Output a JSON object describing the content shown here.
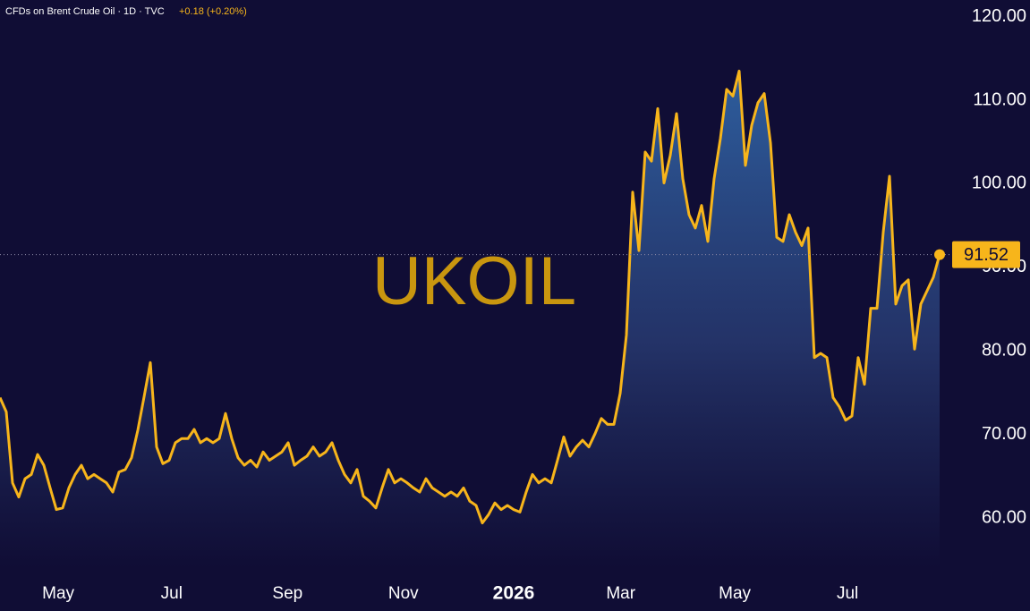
{
  "chart_data": {
    "type": "area-line",
    "title": "CFDs on Brent Crude Oil · 1D · TVC",
    "change": "+0.18 (+0.20%)",
    "watermark": "UKOIL",
    "color": "#f7b51b",
    "values": [
      74.4,
      72.7,
      64.2,
      62.5,
      64.7,
      65.2,
      67.6,
      66.3,
      63.6,
      61,
      61.2,
      63.6,
      65.2,
      66.3,
      64.7,
      65.2,
      64.7,
      64.2,
      63.1,
      65.5,
      65.8,
      67.2,
      70.5,
      74.5,
      78.6,
      68.5,
      66.5,
      66.9,
      69,
      69.5,
      69.5,
      70.6,
      69,
      69.5,
      69,
      69.5,
      72.5,
      69.5,
      67.2,
      66.3,
      66.9,
      66.1,
      67.9,
      66.9,
      67.4,
      67.9,
      69,
      66.3,
      66.9,
      67.4,
      68.5,
      67.4,
      67.9,
      69,
      66.9,
      65.2,
      64.2,
      65.8,
      62.6,
      62,
      61.2,
      63.6,
      65.8,
      64.2,
      64.7,
      64.2,
      63.6,
      63.1,
      64.7,
      63.6,
      63.1,
      62.6,
      63.1,
      62.6,
      63.6,
      62,
      61.5,
      59.4,
      60.4,
      61.8,
      61,
      61.5,
      61,
      60.7,
      63.1,
      65.2,
      64.2,
      64.7,
      64.2,
      66.9,
      69.7,
      67.4,
      68.5,
      69.3,
      68.5,
      70.1,
      71.9,
      71.2,
      71.2,
      74.9,
      81.9,
      99,
      92,
      103.8,
      102.7,
      109,
      100.1,
      103.4,
      108.4,
      100.6,
      96.3,
      94.7,
      97.4,
      93.1,
      100.6,
      105.4,
      111.3,
      110.5,
      113.5,
      102.2,
      107,
      109.7,
      110.8,
      104.9,
      93.6,
      93.1,
      96.3,
      94.2,
      92.6,
      94.7,
      79.2,
      79.7,
      79.2,
      74.4,
      73.3,
      71.7,
      72.2,
      79.2,
      76,
      85.1,
      85.1,
      94.2,
      100.9,
      85.6,
      87.8,
      88.5,
      80.2,
      85.6,
      87.2,
      88.8,
      91.52
    ],
    "xlim": [
      0,
      150
    ],
    "xticks": [
      {
        "value": 9.3,
        "label": "May"
      },
      {
        "value": 27.4,
        "label": "Jul"
      },
      {
        "value": 45.9,
        "label": "Sep"
      },
      {
        "value": 64.4,
        "label": "Nov"
      },
      {
        "value": 82,
        "label": "2026"
      },
      {
        "value": 99.1,
        "label": "Mar"
      },
      {
        "value": 117.3,
        "label": "May"
      },
      {
        "value": 135.3,
        "label": "Jul"
      }
    ],
    "ylim": [
      54,
      122
    ],
    "yticks": [
      {
        "value": 60,
        "label": "60.00"
      },
      {
        "value": 70,
        "label": "70.00"
      },
      {
        "value": 80,
        "label": "80.00"
      },
      {
        "value": 90,
        "label": "90.00"
      },
      {
        "value": 100,
        "label": "100.00"
      },
      {
        "value": 110,
        "label": "110.00"
      },
      {
        "value": 120,
        "label": "120.00"
      }
    ]
  }
}
